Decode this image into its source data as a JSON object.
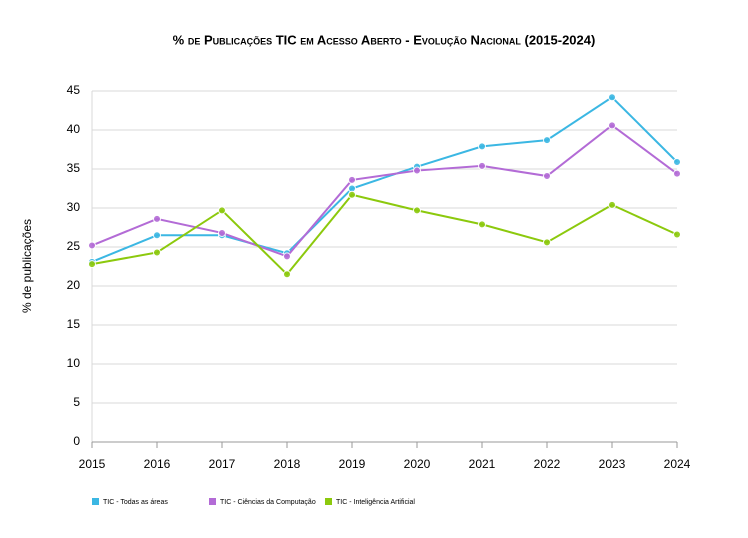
{
  "chart_data": {
    "type": "line",
    "title": "% de Publicações TIC em Acesso Aberto - Evolução Nacional (2015-2024)",
    "y_label": "% de publicações",
    "categories": [
      "2015",
      "2016",
      "2017",
      "2018",
      "2019",
      "2020",
      "2021",
      "2022",
      "2023",
      "2024"
    ],
    "series": [
      {
        "name": "TIC - Todas as áreas",
        "color": "#3bb7e3",
        "values": [
          23.1,
          26.5,
          26.5,
          24.2,
          32.5,
          35.3,
          37.9,
          38.7,
          44.2,
          35.9
        ]
      },
      {
        "name": "TIC - Ciências da Computação",
        "color": "#b36bd6",
        "values": [
          25.2,
          28.6,
          26.8,
          23.8,
          33.6,
          34.8,
          35.4,
          34.1,
          40.6,
          34.4
        ]
      },
      {
        "name": "TIC - Inteligência Artificial",
        "color": "#8cc90d",
        "values": [
          22.8,
          24.3,
          29.7,
          21.5,
          31.7,
          29.7,
          27.9,
          25.6,
          30.4,
          26.6
        ]
      }
    ],
    "ylim": [
      0,
      45
    ],
    "yticks": [
      0,
      5,
      10,
      15,
      20,
      25,
      30,
      35,
      40,
      45
    ],
    "grid": true
  }
}
